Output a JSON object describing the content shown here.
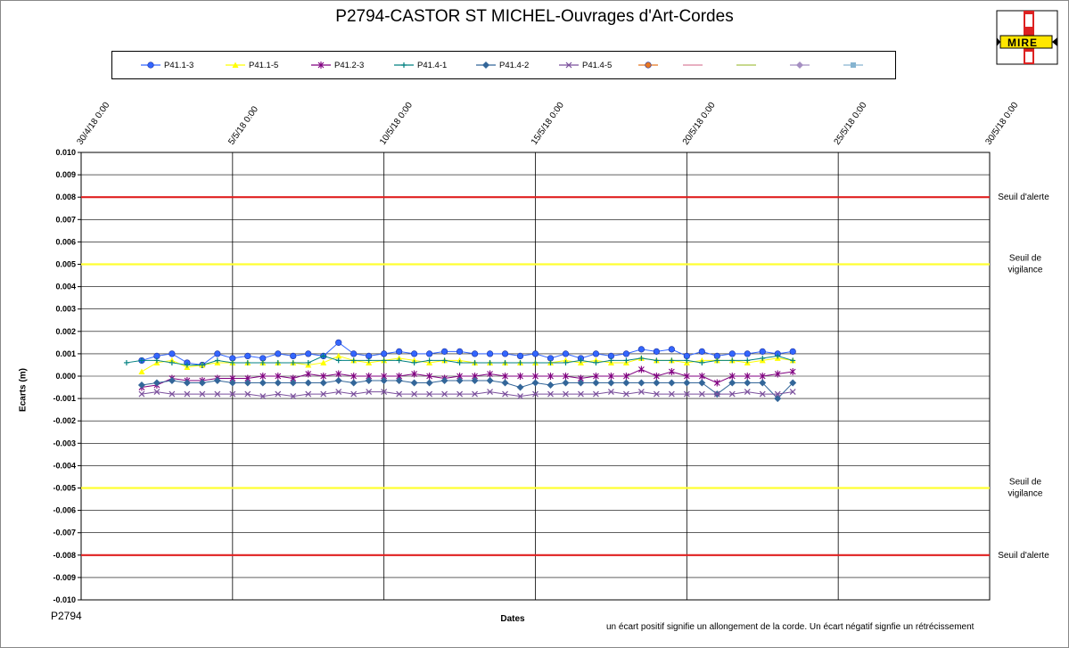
{
  "page": {
    "title": "P2794-CASTOR  ST MICHEL-Ouvrages  d'Art-Cordes",
    "footer_left": "P2794",
    "footer_note": "un écart positif signifie un allongement de la corde.  Un écart négatif signfie un rétrécissement",
    "logo_text": "MIRE",
    "logo_letter": "E"
  },
  "chart_data": {
    "type": "line",
    "title": "P2794-CASTOR  ST MICHEL-Ouvrages  d'Art-Cordes",
    "xlabel": "Dates",
    "ylabel": "Ecarts (m)",
    "xlim": [
      "2018-04-30",
      "2018-05-30"
    ],
    "ylim": [
      -0.01,
      0.01
    ],
    "x_ticks": [
      "30/4/18 0:00",
      "5/5/18 0:00",
      "10/5/18 0:00",
      "15/5/18 0:00",
      "20/5/18 0:00",
      "25/5/18 0:00",
      "30/5/18 0:00"
    ],
    "y_ticks": [
      "0.010",
      "0.009",
      "0.008",
      "0.007",
      "0.006",
      "0.005",
      "0.004",
      "0.003",
      "0.002",
      "0.001",
      "0.000",
      "-0.001",
      "-0.002",
      "-0.003",
      "-0.004",
      "-0.005",
      "-0.006",
      "-0.007",
      "-0.008",
      "-0.009",
      "-0.010"
    ],
    "grid": true,
    "legend_position": "top",
    "thresholds": [
      {
        "label": "Seuil d'alerte",
        "value": 0.008,
        "color": "#e02020"
      },
      {
        "label": "Seuil de vigilance",
        "value": 0.005,
        "color": "#ffff33"
      },
      {
        "label": "Seuil de vigilance",
        "value": -0.005,
        "color": "#ffff33"
      },
      {
        "label": "Seuil d'alerte",
        "value": -0.008,
        "color": "#e02020"
      }
    ],
    "series": [
      {
        "name": "P41.1-3",
        "color": "#3366ff",
        "marker": "circle",
        "x": [
          "2018-05-02",
          "2018-05-02T12:00",
          "2018-05-03",
          "2018-05-03T12:00",
          "2018-05-04",
          "2018-05-04T12:00",
          "2018-05-05",
          "2018-05-05T12:00",
          "2018-05-06",
          "2018-05-06T12:00",
          "2018-05-07",
          "2018-05-07T12:00",
          "2018-05-08",
          "2018-05-08T12:00",
          "2018-05-09",
          "2018-05-09T12:00",
          "2018-05-10",
          "2018-05-10T12:00",
          "2018-05-11",
          "2018-05-11T12:00",
          "2018-05-12",
          "2018-05-12T12:00",
          "2018-05-13",
          "2018-05-13T12:00",
          "2018-05-14",
          "2018-05-14T12:00",
          "2018-05-15",
          "2018-05-15T12:00",
          "2018-05-16",
          "2018-05-16T12:00",
          "2018-05-17",
          "2018-05-17T12:00",
          "2018-05-18",
          "2018-05-18T12:00",
          "2018-05-19",
          "2018-05-19T12:00",
          "2018-05-20",
          "2018-05-20T12:00",
          "2018-05-21",
          "2018-05-21T12:00",
          "2018-05-22",
          "2018-05-22T12:00",
          "2018-05-23",
          "2018-05-23T12:00"
        ],
        "y": [
          0.0007,
          0.0009,
          0.001,
          0.0006,
          0.0005,
          0.001,
          0.0008,
          0.0009,
          0.0008,
          0.001,
          0.0009,
          0.001,
          0.0009,
          0.0015,
          0.001,
          0.0009,
          0.001,
          0.0011,
          0.001,
          0.001,
          0.0011,
          0.0011,
          0.001,
          0.001,
          0.001,
          0.0009,
          0.001,
          0.0008,
          0.001,
          0.0008,
          0.001,
          0.0009,
          0.001,
          0.0012,
          0.0011,
          0.0012,
          0.0009,
          0.0011,
          0.0009,
          0.001,
          0.001,
          0.0011,
          0.001,
          0.0011
        ]
      },
      {
        "name": "P41.1-5",
        "color": "#ffff00",
        "marker": "triangle",
        "x": [
          "2018-05-02",
          "2018-05-02T12:00",
          "2018-05-03",
          "2018-05-03T12:00",
          "2018-05-04",
          "2018-05-04T12:00",
          "2018-05-05",
          "2018-05-05T12:00",
          "2018-05-06",
          "2018-05-06T12:00",
          "2018-05-07",
          "2018-05-07T12:00",
          "2018-05-08",
          "2018-05-08T12:00",
          "2018-05-09",
          "2018-05-09T12:00",
          "2018-05-10",
          "2018-05-10T12:00",
          "2018-05-11",
          "2018-05-11T12:00",
          "2018-05-12",
          "2018-05-12T12:00",
          "2018-05-13",
          "2018-05-13T12:00",
          "2018-05-14",
          "2018-05-14T12:00",
          "2018-05-15",
          "2018-05-15T12:00",
          "2018-05-16",
          "2018-05-16T12:00",
          "2018-05-17",
          "2018-05-17T12:00",
          "2018-05-18",
          "2018-05-18T12:00",
          "2018-05-19",
          "2018-05-19T12:00",
          "2018-05-20",
          "2018-05-20T12:00",
          "2018-05-21",
          "2018-05-21T12:00",
          "2018-05-22",
          "2018-05-22T12:00",
          "2018-05-23",
          "2018-05-23T12:00"
        ],
        "y": [
          0.0002,
          0.0006,
          0.0007,
          0.0004,
          0.0005,
          0.0006,
          0.0006,
          0.0006,
          0.0006,
          0.0006,
          0.0006,
          0.0005,
          0.0006,
          0.0009,
          0.0007,
          0.0006,
          0.0007,
          0.0008,
          0.0007,
          0.0006,
          0.0007,
          0.0007,
          0.0006,
          0.0006,
          0.0006,
          0.0006,
          0.0006,
          0.0006,
          0.0007,
          0.0006,
          0.0007,
          0.0006,
          0.0006,
          0.0008,
          0.0007,
          0.0007,
          0.0006,
          0.0007,
          0.0007,
          0.0007,
          0.0006,
          0.0007,
          0.0008,
          0.0007
        ]
      },
      {
        "name": "P41.2-3",
        "color": "#800080",
        "marker": "star",
        "x": [
          "2018-05-02",
          "2018-05-02T12:00",
          "2018-05-03",
          "2018-05-03T12:00",
          "2018-05-04",
          "2018-05-04T12:00",
          "2018-05-05",
          "2018-05-05T12:00",
          "2018-05-06",
          "2018-05-06T12:00",
          "2018-05-07",
          "2018-05-07T12:00",
          "2018-05-08",
          "2018-05-08T12:00",
          "2018-05-09",
          "2018-05-09T12:00",
          "2018-05-10",
          "2018-05-10T12:00",
          "2018-05-11",
          "2018-05-11T12:00",
          "2018-05-12",
          "2018-05-12T12:00",
          "2018-05-13",
          "2018-05-13T12:00",
          "2018-05-14",
          "2018-05-14T12:00",
          "2018-05-15",
          "2018-05-15T12:00",
          "2018-05-16",
          "2018-05-16T12:00",
          "2018-05-17",
          "2018-05-17T12:00",
          "2018-05-18",
          "2018-05-18T12:00",
          "2018-05-19",
          "2018-05-19T12:00",
          "2018-05-20",
          "2018-05-20T12:00",
          "2018-05-21",
          "2018-05-21T12:00",
          "2018-05-22",
          "2018-05-22T12:00",
          "2018-05-23",
          "2018-05-23T12:00"
        ],
        "y": [
          -0.0005,
          -0.0004,
          -0.0001,
          -0.0002,
          -0.0002,
          -0.0001,
          -0.0001,
          -0.0001,
          0,
          0,
          -0.0001,
          0.0001,
          0,
          0.0001,
          0,
          0,
          0,
          0,
          0.0001,
          0,
          -0.0001,
          0,
          0,
          0.0001,
          0,
          0,
          0,
          0,
          0,
          -0.0001,
          0,
          0,
          0,
          0.0003,
          0,
          0.0002,
          0,
          0,
          -0.0003,
          0,
          0,
          0,
          0.0001,
          0.0002
        ]
      },
      {
        "name": "P41.4-1",
        "color": "#008080",
        "marker": "plus",
        "x": [
          "2018-05-01T12:00",
          "2018-05-02",
          "2018-05-02T12:00",
          "2018-05-03",
          "2018-05-03T12:00",
          "2018-05-04",
          "2018-05-04T12:00",
          "2018-05-05",
          "2018-05-05T12:00",
          "2018-05-06",
          "2018-05-06T12:00",
          "2018-05-07",
          "2018-05-07T12:00",
          "2018-05-08",
          "2018-05-08T12:00",
          "2018-05-09",
          "2018-05-09T12:00",
          "2018-05-10",
          "2018-05-10T12:00",
          "2018-05-11",
          "2018-05-11T12:00",
          "2018-05-12",
          "2018-05-12T12:00",
          "2018-05-13",
          "2018-05-13T12:00",
          "2018-05-14",
          "2018-05-14T12:00",
          "2018-05-15",
          "2018-05-15T12:00",
          "2018-05-16",
          "2018-05-16T12:00",
          "2018-05-17",
          "2018-05-17T12:00",
          "2018-05-18",
          "2018-05-18T12:00",
          "2018-05-19",
          "2018-05-19T12:00",
          "2018-05-20",
          "2018-05-20T12:00",
          "2018-05-21",
          "2018-05-21T12:00",
          "2018-05-22",
          "2018-05-22T12:00",
          "2018-05-23",
          "2018-05-23T12:00"
        ],
        "y": [
          0.0006,
          0.0007,
          0.0007,
          0.0006,
          0.0005,
          0.0005,
          0.0007,
          0.0006,
          0.0006,
          0.0006,
          0.0006,
          0.0006,
          0.0006,
          0.0009,
          0.0007,
          0.0007,
          0.0007,
          0.0007,
          0.0007,
          0.0006,
          0.0007,
          0.0007,
          0.0006,
          0.0006,
          0.0006,
          0.0006,
          0.0006,
          0.0006,
          0.0006,
          0.0006,
          0.0007,
          0.0006,
          0.0007,
          0.0007,
          0.0008,
          0.0007,
          0.0007,
          0.0007,
          0.0006,
          0.0007,
          0.0007,
          0.0007,
          0.0008,
          0.0009,
          0.0007
        ]
      },
      {
        "name": "P41.4-2",
        "color": "#336699",
        "marker": "diamond",
        "x": [
          "2018-05-02",
          "2018-05-02T12:00",
          "2018-05-03",
          "2018-05-03T12:00",
          "2018-05-04",
          "2018-05-04T12:00",
          "2018-05-05",
          "2018-05-05T12:00",
          "2018-05-06",
          "2018-05-06T12:00",
          "2018-05-07",
          "2018-05-07T12:00",
          "2018-05-08",
          "2018-05-08T12:00",
          "2018-05-09",
          "2018-05-09T12:00",
          "2018-05-10",
          "2018-05-10T12:00",
          "2018-05-11",
          "2018-05-11T12:00",
          "2018-05-12",
          "2018-05-12T12:00",
          "2018-05-13",
          "2018-05-13T12:00",
          "2018-05-14",
          "2018-05-14T12:00",
          "2018-05-15",
          "2018-05-15T12:00",
          "2018-05-16",
          "2018-05-16T12:00",
          "2018-05-17",
          "2018-05-17T12:00",
          "2018-05-18",
          "2018-05-18T12:00",
          "2018-05-19",
          "2018-05-19T12:00",
          "2018-05-20",
          "2018-05-20T12:00",
          "2018-05-21",
          "2018-05-21T12:00",
          "2018-05-22",
          "2018-05-22T12:00",
          "2018-05-23",
          "2018-05-23T12:00"
        ],
        "y": [
          -0.0004,
          -0.0003,
          -0.0002,
          -0.0003,
          -0.0003,
          -0.0002,
          -0.0003,
          -0.0003,
          -0.0003,
          -0.0003,
          -0.0003,
          -0.0003,
          -0.0003,
          -0.0002,
          -0.0003,
          -0.0002,
          -0.0002,
          -0.0002,
          -0.0003,
          -0.0003,
          -0.0002,
          -0.0002,
          -0.0002,
          -0.0002,
          -0.0003,
          -0.0005,
          -0.0003,
          -0.0004,
          -0.0003,
          -0.0003,
          -0.0003,
          -0.0003,
          -0.0003,
          -0.0003,
          -0.0003,
          -0.0003,
          -0.0003,
          -0.0003,
          -0.0008,
          -0.0003,
          -0.0003,
          -0.0003,
          -0.001,
          -0.0003
        ]
      },
      {
        "name": "P41.4-5",
        "color": "#7a4f9c",
        "marker": "x",
        "x": [
          "2018-05-02",
          "2018-05-02T12:00",
          "2018-05-03",
          "2018-05-03T12:00",
          "2018-05-04",
          "2018-05-04T12:00",
          "2018-05-05",
          "2018-05-05T12:00",
          "2018-05-06",
          "2018-05-06T12:00",
          "2018-05-07",
          "2018-05-07T12:00",
          "2018-05-08",
          "2018-05-08T12:00",
          "2018-05-09",
          "2018-05-09T12:00",
          "2018-05-10",
          "2018-05-10T12:00",
          "2018-05-11",
          "2018-05-11T12:00",
          "2018-05-12",
          "2018-05-12T12:00",
          "2018-05-13",
          "2018-05-13T12:00",
          "2018-05-14",
          "2018-05-14T12:00",
          "2018-05-15",
          "2018-05-15T12:00",
          "2018-05-16",
          "2018-05-16T12:00",
          "2018-05-17",
          "2018-05-17T12:00",
          "2018-05-18",
          "2018-05-18T12:00",
          "2018-05-19",
          "2018-05-19T12:00",
          "2018-05-20",
          "2018-05-20T12:00",
          "2018-05-21",
          "2018-05-21T12:00",
          "2018-05-22",
          "2018-05-22T12:00",
          "2018-05-23",
          "2018-05-23T12:00"
        ],
        "y": [
          -0.0008,
          -0.0007,
          -0.0008,
          -0.0008,
          -0.0008,
          -0.0008,
          -0.0008,
          -0.0008,
          -0.0009,
          -0.0008,
          -0.0009,
          -0.0008,
          -0.0008,
          -0.0007,
          -0.0008,
          -0.0007,
          -0.0007,
          -0.0008,
          -0.0008,
          -0.0008,
          -0.0008,
          -0.0008,
          -0.0008,
          -0.0007,
          -0.0008,
          -0.0009,
          -0.0008,
          -0.0008,
          -0.0008,
          -0.0008,
          -0.0008,
          -0.0007,
          -0.0008,
          -0.0007,
          -0.0008,
          -0.0008,
          -0.0008,
          -0.0008,
          -0.0008,
          -0.0008,
          -0.0007,
          -0.0008,
          -0.0008,
          -0.0007
        ]
      },
      {
        "name": "",
        "color": "#e87722",
        "marker": "circle",
        "x": [],
        "y": []
      },
      {
        "name": "",
        "color": "#d9809c",
        "marker": "none",
        "x": [],
        "y": []
      },
      {
        "name": "",
        "color": "#a6c24a",
        "marker": "none",
        "x": [],
        "y": []
      },
      {
        "name": "",
        "color": "#a58fc2",
        "marker": "diamond",
        "x": [],
        "y": []
      },
      {
        "name": "",
        "color": "#86b4d0",
        "marker": "square",
        "x": [],
        "y": []
      }
    ]
  }
}
